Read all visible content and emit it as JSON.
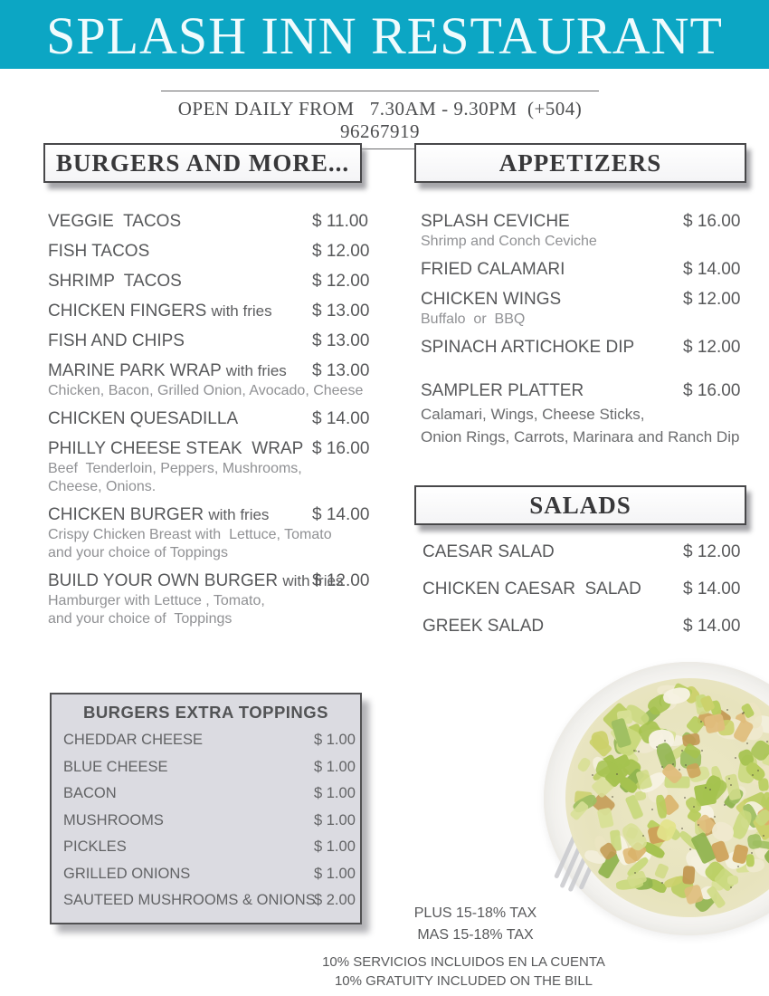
{
  "header": {
    "title": "SPLASH INN RESTAURANT",
    "banner_color": "#0ca6c4"
  },
  "info": {
    "text": "OPEN DAILY FROM   7.30AM - 9.30PM  (+504) 96267919"
  },
  "sections": {
    "burgers": {
      "title": "BURGERS AND MORE...",
      "items": [
        {
          "name": "VEGGIE  TACOS",
          "suffix": "",
          "price": "$ 11.00",
          "desc": []
        },
        {
          "name": "FISH TACOS",
          "suffix": "",
          "price": "$ 12.00",
          "desc": []
        },
        {
          "name": "SHRIMP  TACOS",
          "suffix": "",
          "price": "$ 12.00",
          "desc": []
        },
        {
          "name": "CHICKEN FINGERS ",
          "suffix": "with fries",
          "price": "$ 13.00",
          "desc": []
        },
        {
          "name": "FISH AND CHIPS",
          "suffix": "",
          "price": "$ 13.00",
          "desc": []
        },
        {
          "name": "MARINE PARK WRAP ",
          "suffix": "with fries",
          "price": "$ 13.00",
          "desc": [
            "Chicken, Bacon, Grilled Onion, Avocado, Cheese"
          ]
        },
        {
          "name": "CHICKEN QUESADILLA",
          "suffix": "",
          "price": "$ 14.00",
          "desc": []
        },
        {
          "name": "PHILLY CHEESE STEAK  WRAP",
          "suffix": "",
          "price": "$ 16.00",
          "desc": [
            "Beef  Tenderloin, Peppers, Mushrooms,",
            "Cheese, Onions."
          ]
        },
        {
          "name": "CHICKEN BURGER ",
          "suffix": "with fries",
          "price": "$ 14.00",
          "desc": [
            "Crispy Chicken Breast with  Lettuce, Tomato",
            "and your choice of Toppings"
          ]
        },
        {
          "name": "BUILD YOUR OWN BURGER ",
          "suffix": "with fries",
          "price": "$ 12.00",
          "desc": [
            "Hamburger with Lettuce , Tomato,",
            "and your choice of  Toppings"
          ]
        }
      ]
    },
    "appetizers": {
      "title": "APPETIZERS",
      "items": [
        {
          "name": "SPLASH CEVICHE",
          "suffix": "",
          "price": "$ 16.00",
          "desc": [
            "Shrimp and Conch Ceviche"
          ]
        },
        {
          "name": "FRIED CALAMARI",
          "suffix": "",
          "price": "$ 14.00",
          "desc": []
        },
        {
          "name": "CHICKEN WINGS",
          "suffix": "",
          "price": "$ 12.00",
          "desc": [
            "Buffalo  or  BBQ"
          ]
        },
        {
          "name": "SPINACH ARTICHOKE DIP",
          "suffix": "",
          "price": "$ 12.00",
          "desc": []
        },
        {
          "name": "SAMPLER PLATTER",
          "suffix": "",
          "price": "$ 16.00",
          "gap_before": 24,
          "desc_style": "dark",
          "desc": [
            "Calamari, Wings, Cheese Sticks,",
            "Onion Rings, Carrots, Marinara and Ranch Dip"
          ]
        }
      ]
    },
    "salads": {
      "title": "SALADS",
      "items": [
        {
          "name": "CAESAR SALAD",
          "suffix": "",
          "price": "$ 12.00",
          "desc": []
        },
        {
          "name": "CHICKEN CAESAR  SALAD",
          "suffix": "",
          "price": "$ 14.00",
          "desc": []
        },
        {
          "name": "GREEK SALAD",
          "suffix": "",
          "price": "$ 14.00",
          "desc": []
        }
      ]
    },
    "toppings": {
      "title": "BURGERS EXTRA TOPPINGS",
      "items": [
        {
          "name": "CHEDDAR CHEESE",
          "price": "$ 1.00"
        },
        {
          "name": "BLUE CHEESE",
          "price": "$ 1.00"
        },
        {
          "name": "BACON",
          "price": "$ 1.00"
        },
        {
          "name": "MUSHROOMS",
          "price": "$ 1.00"
        },
        {
          "name": "PICKLES",
          "price": "$ 1.00"
        },
        {
          "name": "GRILLED ONIONS",
          "price": "$ 1.00"
        },
        {
          "name": "SAUTEED MUSHROOMS & ONIONS",
          "price": "$ 2.00"
        }
      ]
    }
  },
  "footnotes": {
    "tax_lines": [
      "PLUS 15-18% TAX",
      "MAS 15-18% TAX"
    ],
    "gratuity_lines": [
      "10% SERVICIOS INCLUIDOS EN LA CUENTA",
      "10% GRATUITY INCLUDED ON THE BILL"
    ]
  },
  "salad_photo": {
    "label": "caesar-salad-on-white-plate"
  }
}
